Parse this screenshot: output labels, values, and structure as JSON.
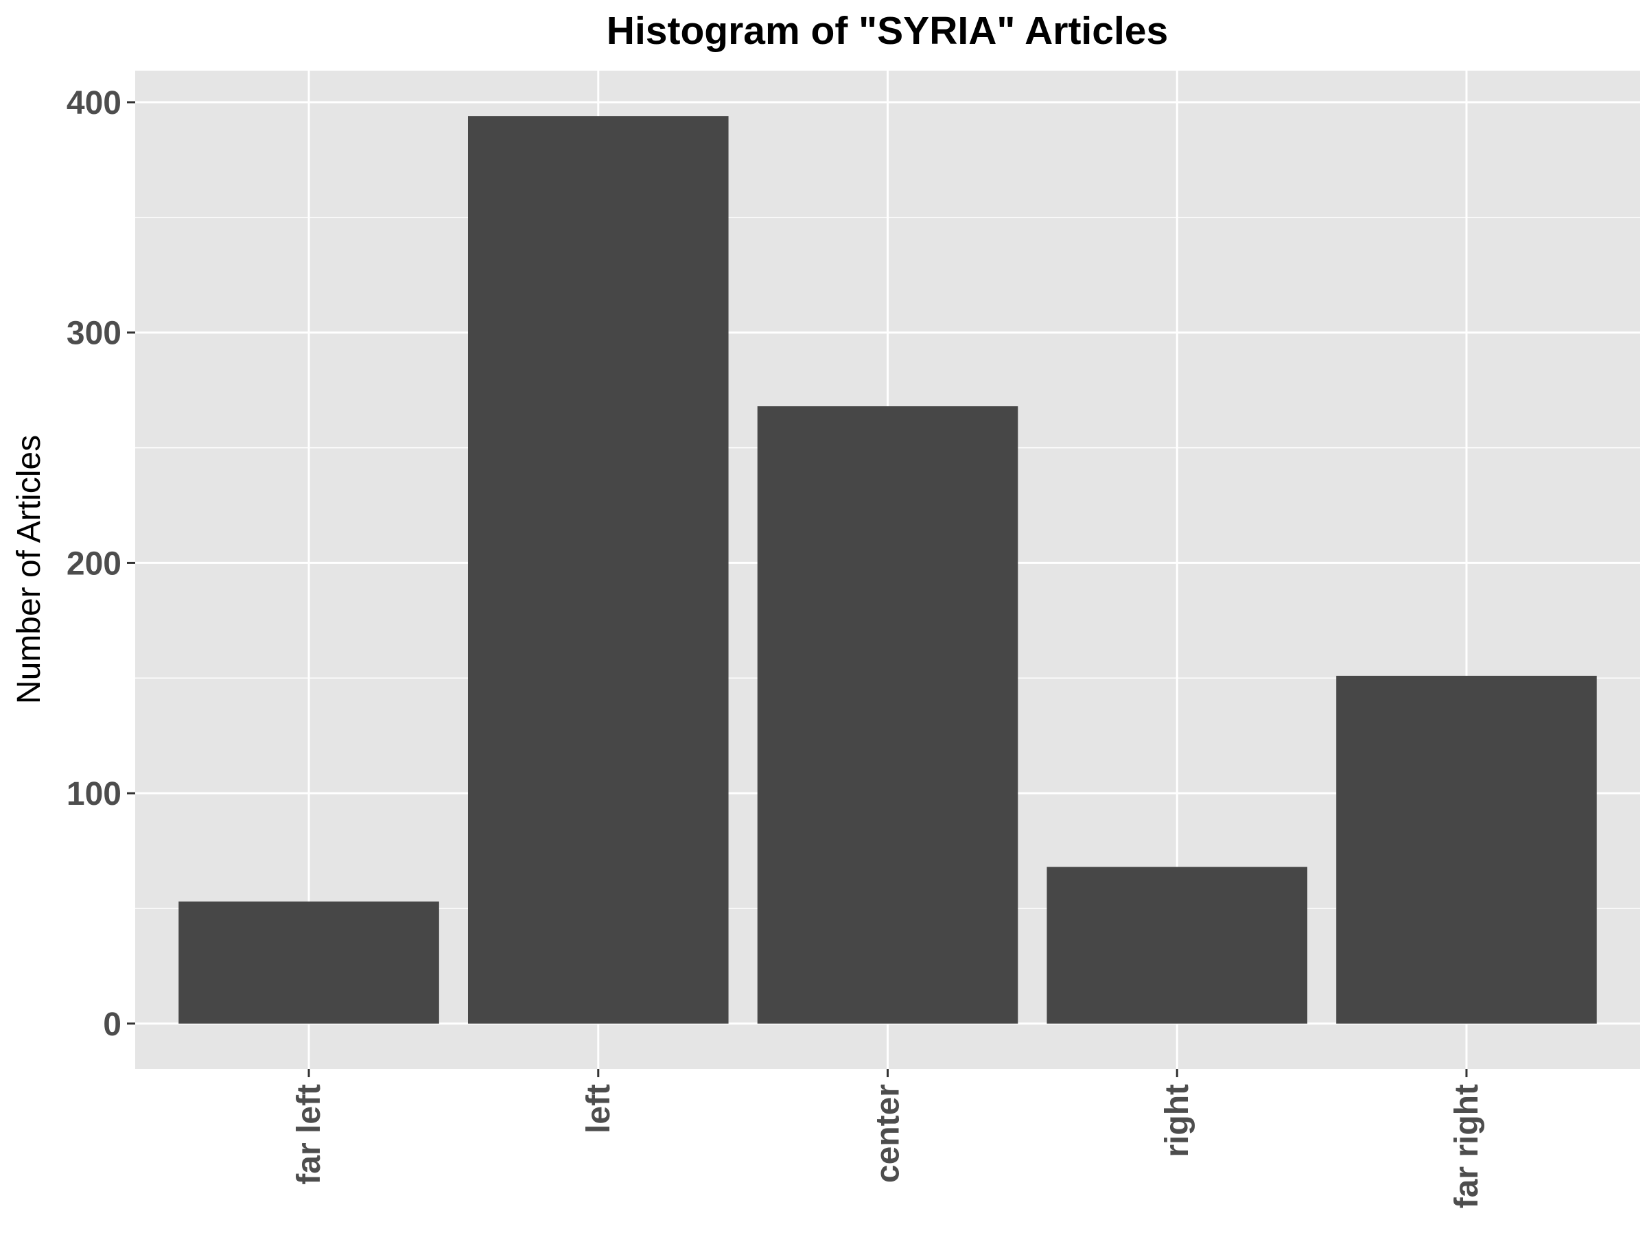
{
  "chart_data": {
    "type": "bar",
    "title": "Histogram of \"SYRIA\" Articles",
    "xlabel": "",
    "ylabel": "Number of Articles",
    "categories": [
      "far left",
      "left",
      "center",
      "right",
      "far right"
    ],
    "values": [
      53,
      394,
      268,
      68,
      151
    ],
    "ylim": [
      -19.7,
      413.7
    ],
    "yticks": [
      0,
      100,
      200,
      300,
      400
    ],
    "grid": true,
    "legend": "none",
    "colors": {
      "panel": "#e5e5e5",
      "grid": "#ffffff",
      "bar": "#474747",
      "tick_text": "#4d4d4d",
      "tick_mark": "#333333",
      "title": "#000000"
    }
  }
}
